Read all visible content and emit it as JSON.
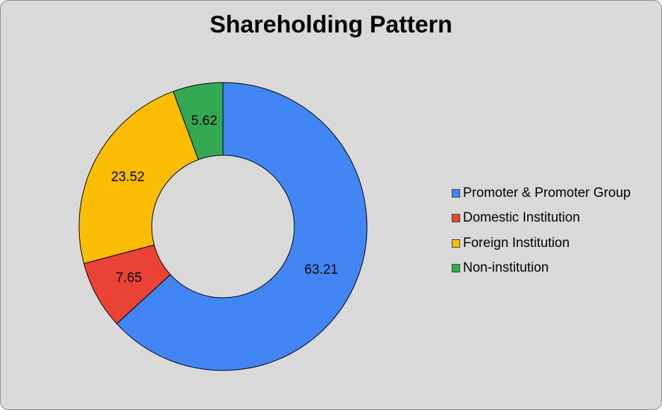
{
  "chart_data": {
    "type": "pie",
    "style": "donut",
    "title": "Shareholding Pattern",
    "categories": [
      "Promoter & Promoter Group",
      "Domestic Institution",
      "Foreign Institution",
      "Non-institution"
    ],
    "values": [
      63.21,
      7.65,
      23.52,
      5.62
    ],
    "colors": [
      "#4285f4",
      "#ea4335",
      "#fbbc04",
      "#34a853"
    ],
    "legend_position": "right"
  }
}
